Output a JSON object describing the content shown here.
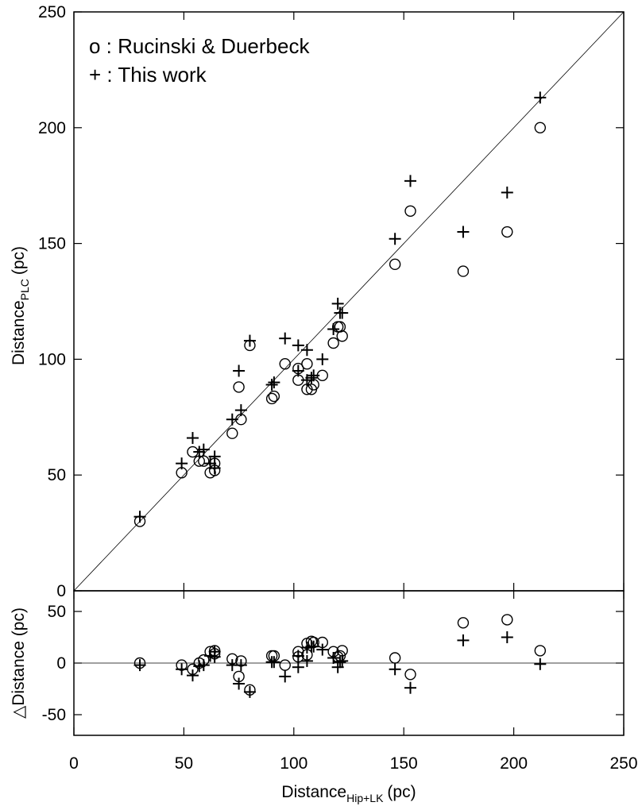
{
  "chart_data": [
    {
      "type": "scatter",
      "panel": "top",
      "ylabel": "Distance",
      "ylabel_sub": "PLC",
      "ylabel_unit": "(pc)",
      "xlim": [
        0,
        250
      ],
      "ylim": [
        0,
        250
      ],
      "yticks": [
        "0",
        "50",
        "100",
        "150",
        "200",
        "250"
      ],
      "legend": [
        {
          "symbol": "o",
          "text": "o : Rucinski & Duerbeck"
        },
        {
          "symbol": "+",
          "text": "+ : This work"
        }
      ],
      "reference_line": "y = x",
      "series": [
        {
          "name": "Rucinski & Duerbeck",
          "marker": "circle",
          "points": [
            [
              30,
              30
            ],
            [
              49,
              51
            ],
            [
              54,
              60
            ],
            [
              57,
              56
            ],
            [
              59,
              56
            ],
            [
              62,
              51
            ],
            [
              64,
              55
            ],
            [
              64,
              52
            ],
            [
              72,
              68
            ],
            [
              75,
              88
            ],
            [
              76,
              74
            ],
            [
              80,
              106
            ],
            [
              90,
              83
            ],
            [
              91,
              84
            ],
            [
              96,
              98
            ],
            [
              102,
              91
            ],
            [
              102,
              96
            ],
            [
              106,
              98
            ],
            [
              106,
              87
            ],
            [
              108,
              87
            ],
            [
              109,
              89
            ],
            [
              113,
              93
            ],
            [
              118,
              107
            ],
            [
              120,
              114
            ],
            [
              121,
              114
            ],
            [
              122,
              110
            ],
            [
              146,
              141
            ],
            [
              153,
              164
            ],
            [
              177,
              138
            ],
            [
              197,
              155
            ],
            [
              212,
              200
            ]
          ]
        },
        {
          "name": "This work",
          "marker": "plus",
          "points": [
            [
              30,
              32
            ],
            [
              49,
              55
            ],
            [
              54,
              66
            ],
            [
              57,
              60
            ],
            [
              59,
              61
            ],
            [
              62,
              55
            ],
            [
              64,
              58
            ],
            [
              64,
              53
            ],
            [
              72,
              74
            ],
            [
              75,
              95
            ],
            [
              76,
              78
            ],
            [
              80,
              108
            ],
            [
              90,
              89
            ],
            [
              91,
              90
            ],
            [
              96,
              109
            ],
            [
              102,
              106
            ],
            [
              102,
              95
            ],
            [
              106,
              104
            ],
            [
              106,
              91
            ],
            [
              108,
              92
            ],
            [
              109,
              93
            ],
            [
              113,
              100
            ],
            [
              118,
              113
            ],
            [
              120,
              124
            ],
            [
              121,
              120
            ],
            [
              122,
              120
            ],
            [
              146,
              152
            ],
            [
              153,
              177
            ],
            [
              177,
              155
            ],
            [
              197,
              172
            ],
            [
              212,
              213
            ]
          ]
        }
      ]
    },
    {
      "type": "scatter",
      "panel": "bottom",
      "xlabel": "Distance",
      "xlabel_sub": "Hip+LK",
      "xlabel_unit": "(pc)",
      "ylabel": "Distance (pc)",
      "ylabel_prefix": "△",
      "xlim": [
        0,
        250
      ],
      "ylim": [
        -70,
        70
      ],
      "xticks": [
        "0",
        "50",
        "100",
        "150",
        "200",
        "250"
      ],
      "yticks": [
        "-50",
        "0",
        "50"
      ],
      "reference_line": "y = 0",
      "series": [
        {
          "name": "Rucinski & Duerbeck",
          "marker": "circle",
          "points": [
            [
              30,
              0
            ],
            [
              49,
              -2
            ],
            [
              54,
              -6
            ],
            [
              57,
              0
            ],
            [
              59,
              3
            ],
            [
              62,
              11
            ],
            [
              64,
              9
            ],
            [
              64,
              12
            ],
            [
              72,
              4
            ],
            [
              75,
              -13
            ],
            [
              76,
              2
            ],
            [
              80,
              -26
            ],
            [
              90,
              7
            ],
            [
              91,
              7
            ],
            [
              96,
              -2
            ],
            [
              102,
              11
            ],
            [
              102,
              6
            ],
            [
              106,
              8
            ],
            [
              106,
              19
            ],
            [
              108,
              21
            ],
            [
              109,
              20
            ],
            [
              113,
              20
            ],
            [
              118,
              11
            ],
            [
              120,
              6
            ],
            [
              121,
              7
            ],
            [
              122,
              12
            ],
            [
              146,
              5
            ],
            [
              153,
              -11
            ],
            [
              177,
              39
            ],
            [
              197,
              42
            ],
            [
              212,
              12
            ]
          ]
        },
        {
          "name": "This work",
          "marker": "plus",
          "points": [
            [
              30,
              -2
            ],
            [
              49,
              -6
            ],
            [
              54,
              -12
            ],
            [
              57,
              -3
            ],
            [
              59,
              -2
            ],
            [
              62,
              7
            ],
            [
              64,
              6
            ],
            [
              64,
              11
            ],
            [
              72,
              -2
            ],
            [
              75,
              -20
            ],
            [
              76,
              -2
            ],
            [
              80,
              -28
            ],
            [
              90,
              1
            ],
            [
              91,
              1
            ],
            [
              96,
              -13
            ],
            [
              102,
              -4
            ],
            [
              102,
              7
            ],
            [
              106,
              2
            ],
            [
              106,
              15
            ],
            [
              108,
              16
            ],
            [
              109,
              16
            ],
            [
              113,
              13
            ],
            [
              118,
              5
            ],
            [
              120,
              -4
            ],
            [
              121,
              1
            ],
            [
              122,
              2
            ],
            [
              146,
              -6
            ],
            [
              153,
              -24
            ],
            [
              177,
              22
            ],
            [
              197,
              25
            ],
            [
              212,
              -1
            ]
          ]
        }
      ]
    }
  ]
}
